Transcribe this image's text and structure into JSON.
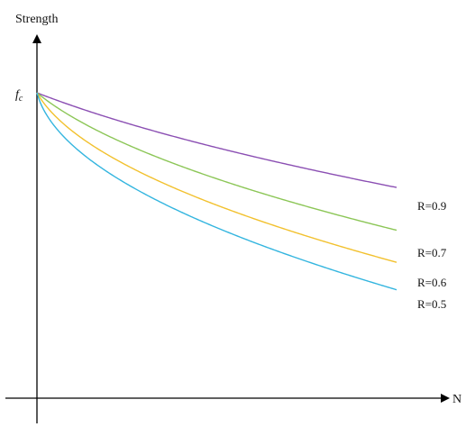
{
  "chart_data": {
    "type": "line",
    "ylabel": "Strength",
    "xlabel": "N",
    "y_start_label": "fc",
    "y_start_label_main": "f",
    "y_start_label_sub": "c",
    "axis_color": "#000000",
    "series": [
      {
        "name": "R=0.9",
        "color": "#8B4FB3",
        "knee": 0.35,
        "drop": 0.31
      },
      {
        "name": "R=0.7",
        "color": "#8CC657",
        "knee": 0.1,
        "drop": 0.45
      },
      {
        "name": "R=0.6",
        "color": "#F2C12E",
        "knee": 0.025,
        "drop": 0.555
      },
      {
        "name": "R=0.5",
        "color": "#33B5DF",
        "knee": 0.006,
        "drop": 0.645
      }
    ]
  }
}
